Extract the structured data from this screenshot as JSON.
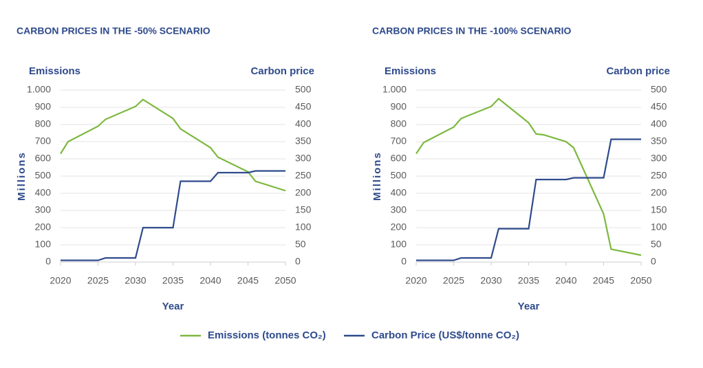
{
  "chart_data": [
    {
      "type": "line",
      "title": "CARBON PRICES IN THE -50% SCENARIO",
      "y_title": "Emissions",
      "y2_title": "Carbon price",
      "y_unit": "Millions",
      "x_title": "Year",
      "x": [
        2020,
        2021,
        2025,
        2026,
        2030,
        2031,
        2035,
        2036,
        2040,
        2041,
        2045,
        2046,
        2050
      ],
      "series": [
        {
          "name": "Emissions (tonnes CO₂)",
          "color": "#7cb83e",
          "values": [
            630,
            700,
            790,
            830,
            905,
            945,
            835,
            775,
            665,
            610,
            525,
            470,
            415
          ]
        },
        {
          "name": "Carbon Price (US$/tonne CO₂)",
          "color": "#2e4a8c",
          "axis": "y2",
          "values": [
            5,
            5,
            5,
            12,
            12,
            100,
            100,
            235,
            235,
            260,
            260,
            265,
            265
          ]
        }
      ],
      "xlim": [
        2020,
        2050
      ],
      "xticks": [
        2020,
        2025,
        2030,
        2035,
        2040,
        2045,
        2050
      ],
      "ylim": [
        0,
        1000
      ],
      "yticks": [
        0,
        100,
        200,
        300,
        400,
        500,
        600,
        700,
        800,
        900,
        {
          "value": 1000,
          "label": "1.000"
        }
      ],
      "y2lim": [
        0,
        500
      ],
      "y2ticks": [
        0,
        50,
        100,
        150,
        200,
        250,
        300,
        350,
        400,
        450,
        500
      ],
      "grid": true
    },
    {
      "type": "line",
      "title": "CARBON PRICES IN THE -100% SCENARIO",
      "y_title": "Emissions",
      "y2_title": "Carbon price",
      "y_unit": "Millions",
      "x_title": "Year",
      "x": [
        2020,
        2021,
        2025,
        2026,
        2030,
        2031,
        2035,
        2036,
        2037,
        2040,
        2041,
        2045,
        2046,
        2050
      ],
      "series": [
        {
          "color": "#7cb83e",
          "values": [
            630,
            695,
            785,
            835,
            905,
            950,
            810,
            745,
            740,
            700,
            665,
            280,
            75,
            40
          ]
        },
        {
          "color": "#2e4a8c",
          "axis": "y2",
          "values": [
            5,
            5,
            5,
            12,
            12,
            97,
            97,
            240,
            240,
            240,
            245,
            245,
            357,
            357
          ]
        }
      ],
      "xlim": [
        2020,
        2050
      ],
      "xticks": [
        2020,
        2025,
        2030,
        2035,
        2040,
        2045,
        2050
      ],
      "ylim": [
        0,
        1000
      ],
      "yticks": [
        0,
        100,
        200,
        300,
        400,
        500,
        600,
        700,
        800,
        900,
        {
          "value": 1000,
          "label": "1.000"
        }
      ],
      "y2lim": [
        0,
        500
      ],
      "y2ticks": [
        0,
        50,
        100,
        150,
        200,
        250,
        300,
        350,
        400,
        450,
        500
      ],
      "grid": true
    }
  ]
}
